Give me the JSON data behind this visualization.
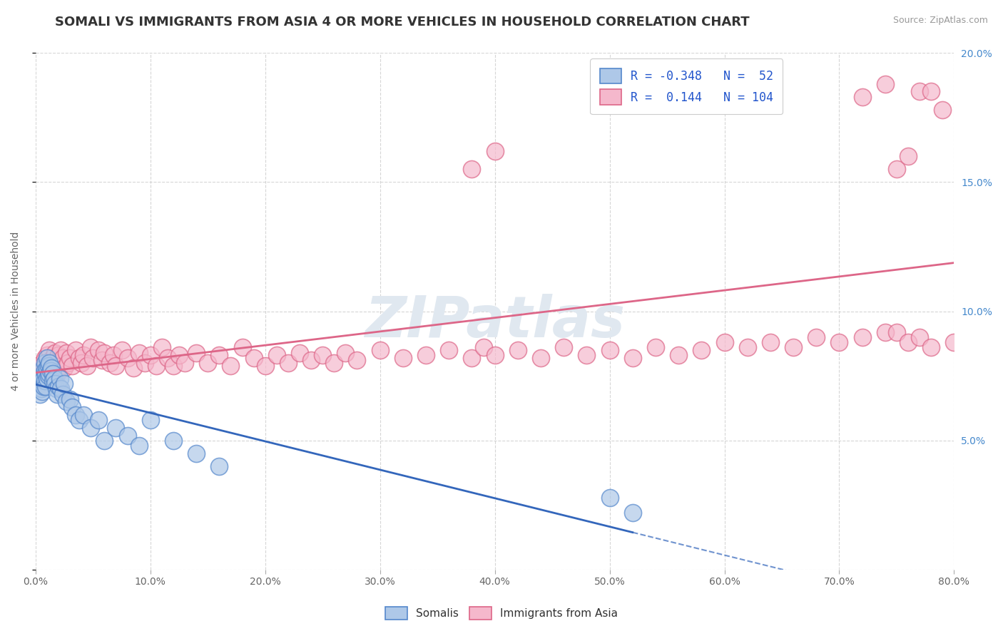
{
  "title": "SOMALI VS IMMIGRANTS FROM ASIA 4 OR MORE VEHICLES IN HOUSEHOLD CORRELATION CHART",
  "source_text": "Source: ZipAtlas.com",
  "ylabel": "4 or more Vehicles in Household",
  "xmin": 0.0,
  "xmax": 0.8,
  "ymin": 0.0,
  "ymax": 0.2,
  "somali_R": -0.348,
  "somali_N": 52,
  "asia_R": 0.144,
  "asia_N": 104,
  "somali_color": "#aec8e8",
  "somali_edge_color": "#5588cc",
  "somali_line_color": "#3366bb",
  "asia_color": "#f5b8cc",
  "asia_edge_color": "#dd6688",
  "asia_line_color": "#dd6688",
  "background_color": "#ffffff",
  "grid_color": "#cccccc",
  "watermark_color": "#e0e8f0",
  "legend_R_color": "#2255cc",
  "title_color": "#333333",
  "tick_color_x": "#666666",
  "tick_color_y": "#4488cc",
  "ylabel_color": "#666666",
  "title_fontsize": 13,
  "axis_label_fontsize": 10,
  "tick_fontsize": 10,
  "legend_fontsize": 12,
  "somali_x": [
    0.003,
    0.004,
    0.005,
    0.005,
    0.006,
    0.006,
    0.007,
    0.007,
    0.007,
    0.008,
    0.008,
    0.008,
    0.009,
    0.009,
    0.01,
    0.01,
    0.01,
    0.011,
    0.011,
    0.012,
    0.012,
    0.013,
    0.014,
    0.015,
    0.015,
    0.016,
    0.017,
    0.018,
    0.019,
    0.02,
    0.021,
    0.022,
    0.024,
    0.025,
    0.027,
    0.03,
    0.032,
    0.035,
    0.038,
    0.042,
    0.048,
    0.055,
    0.06,
    0.07,
    0.08,
    0.09,
    0.1,
    0.12,
    0.14,
    0.16,
    0.5,
    0.52
  ],
  "somali_y": [
    0.072,
    0.068,
    0.075,
    0.07,
    0.073,
    0.069,
    0.078,
    0.074,
    0.071,
    0.08,
    0.077,
    0.073,
    0.076,
    0.071,
    0.082,
    0.078,
    0.074,
    0.079,
    0.075,
    0.08,
    0.076,
    0.077,
    0.078,
    0.076,
    0.073,
    0.074,
    0.072,
    0.07,
    0.068,
    0.071,
    0.074,
    0.07,
    0.068,
    0.072,
    0.065,
    0.066,
    0.063,
    0.06,
    0.058,
    0.06,
    0.055,
    0.058,
    0.05,
    0.055,
    0.052,
    0.048,
    0.058,
    0.05,
    0.045,
    0.04,
    0.028,
    0.022
  ],
  "asia_x": [
    0.003,
    0.004,
    0.005,
    0.006,
    0.007,
    0.008,
    0.009,
    0.01,
    0.011,
    0.012,
    0.013,
    0.014,
    0.015,
    0.016,
    0.017,
    0.018,
    0.019,
    0.02,
    0.021,
    0.022,
    0.024,
    0.025,
    0.027,
    0.028,
    0.03,
    0.032,
    0.035,
    0.038,
    0.04,
    0.042,
    0.045,
    0.048,
    0.05,
    0.055,
    0.058,
    0.06,
    0.065,
    0.068,
    0.07,
    0.075,
    0.08,
    0.085,
    0.09,
    0.095,
    0.1,
    0.105,
    0.11,
    0.115,
    0.12,
    0.125,
    0.13,
    0.14,
    0.15,
    0.16,
    0.17,
    0.18,
    0.19,
    0.2,
    0.21,
    0.22,
    0.23,
    0.24,
    0.25,
    0.26,
    0.27,
    0.28,
    0.3,
    0.32,
    0.34,
    0.36,
    0.38,
    0.39,
    0.4,
    0.42,
    0.44,
    0.46,
    0.48,
    0.5,
    0.52,
    0.54,
    0.56,
    0.58,
    0.6,
    0.62,
    0.64,
    0.66,
    0.68,
    0.7,
    0.72,
    0.74,
    0.75,
    0.76,
    0.77,
    0.78,
    0.79,
    0.8,
    0.38,
    0.4,
    0.72,
    0.74,
    0.75,
    0.76,
    0.77,
    0.78
  ],
  "asia_y": [
    0.078,
    0.075,
    0.072,
    0.08,
    0.076,
    0.082,
    0.078,
    0.083,
    0.079,
    0.085,
    0.08,
    0.077,
    0.082,
    0.079,
    0.084,
    0.08,
    0.076,
    0.083,
    0.079,
    0.085,
    0.082,
    0.078,
    0.084,
    0.08,
    0.082,
    0.079,
    0.085,
    0.082,
    0.08,
    0.083,
    0.079,
    0.086,
    0.082,
    0.085,
    0.081,
    0.084,
    0.08,
    0.083,
    0.079,
    0.085,
    0.082,
    0.078,
    0.084,
    0.08,
    0.083,
    0.079,
    0.086,
    0.082,
    0.079,
    0.083,
    0.08,
    0.084,
    0.08,
    0.083,
    0.079,
    0.086,
    0.082,
    0.079,
    0.083,
    0.08,
    0.084,
    0.081,
    0.083,
    0.08,
    0.084,
    0.081,
    0.085,
    0.082,
    0.083,
    0.085,
    0.082,
    0.086,
    0.083,
    0.085,
    0.082,
    0.086,
    0.083,
    0.085,
    0.082,
    0.086,
    0.083,
    0.085,
    0.088,
    0.086,
    0.088,
    0.086,
    0.09,
    0.088,
    0.09,
    0.092,
    0.155,
    0.16,
    0.185,
    0.185,
    0.178,
    0.088,
    0.155,
    0.162,
    0.183,
    0.188,
    0.092,
    0.088,
    0.09,
    0.086
  ]
}
